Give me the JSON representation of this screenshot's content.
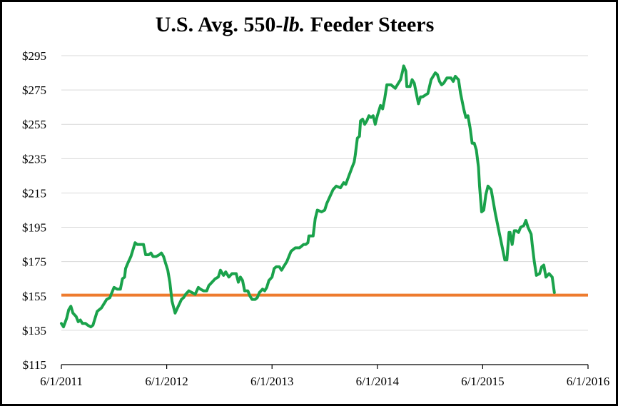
{
  "chart_data": {
    "type": "line",
    "title_parts": [
      "U.S. Avg. 550-",
      "lb.",
      " Feeder Steers"
    ],
    "xlabel": "",
    "ylabel": "",
    "ylim": [
      115,
      295
    ],
    "y_ticks": [
      "$295",
      "$275",
      "$255",
      "$235",
      "$215",
      "$195",
      "$175",
      "$155",
      "$135",
      "$115"
    ],
    "y_tick_values": [
      295,
      275,
      255,
      235,
      215,
      195,
      175,
      155,
      135,
      115
    ],
    "x_ticks": [
      "6/1/2011",
      "6/1/2012",
      "6/1/2013",
      "6/1/2014",
      "6/1/2015",
      "6/1/2016"
    ],
    "x_tick_values": [
      2011.0,
      2012.0,
      2013.0,
      2014.0,
      2015.0,
      2016.0
    ],
    "grid": "horizontal",
    "legend": "none",
    "colors": {
      "price": "#1aa24b",
      "reference": "#ee7b2e",
      "grid": "#d9d9d9",
      "axis": "#000000"
    },
    "series": [
      {
        "points": [
          [
            2011.0,
            139
          ],
          [
            2011.02,
            137
          ],
          [
            2011.05,
            142
          ],
          [
            2011.07,
            147
          ],
          [
            2011.09,
            149
          ],
          [
            2011.11,
            145
          ],
          [
            2011.14,
            143
          ],
          [
            2011.16,
            140
          ],
          [
            2011.18,
            141
          ],
          [
            2011.2,
            139
          ],
          [
            2011.23,
            139
          ],
          [
            2011.25,
            138
          ],
          [
            2011.28,
            137
          ],
          [
            2011.3,
            138
          ],
          [
            2011.32,
            142
          ],
          [
            2011.34,
            146
          ],
          [
            2011.38,
            148
          ],
          [
            2011.41,
            151
          ],
          [
            2011.43,
            153
          ],
          [
            2011.46,
            154
          ],
          [
            2011.48,
            157
          ],
          [
            2011.5,
            160
          ],
          [
            2011.53,
            159
          ],
          [
            2011.56,
            159
          ],
          [
            2011.58,
            165
          ],
          [
            2011.6,
            166
          ],
          [
            2011.61,
            171
          ],
          [
            2011.63,
            174
          ],
          [
            2011.66,
            178
          ],
          [
            2011.68,
            182
          ],
          [
            2011.7,
            186
          ],
          [
            2011.72,
            185
          ],
          [
            2011.74,
            185
          ],
          [
            2011.78,
            185
          ],
          [
            2011.8,
            179
          ],
          [
            2011.83,
            179
          ],
          [
            2011.85,
            180
          ],
          [
            2011.87,
            178
          ],
          [
            2011.9,
            178
          ],
          [
            2011.93,
            179
          ],
          [
            2011.95,
            180
          ],
          [
            2011.97,
            178
          ],
          [
            2011.99,
            174
          ],
          [
            2012.01,
            170
          ],
          [
            2012.03,
            163
          ],
          [
            2012.05,
            152
          ],
          [
            2012.08,
            145
          ],
          [
            2012.11,
            149
          ],
          [
            2012.14,
            153
          ],
          [
            2012.16,
            154
          ],
          [
            2012.18,
            156
          ],
          [
            2012.21,
            158
          ],
          [
            2012.24,
            157
          ],
          [
            2012.27,
            156
          ],
          [
            2012.3,
            160
          ],
          [
            2012.32,
            159
          ],
          [
            2012.35,
            158
          ],
          [
            2012.38,
            158
          ],
          [
            2012.4,
            161
          ],
          [
            2012.43,
            163
          ],
          [
            2012.46,
            165
          ],
          [
            2012.49,
            166
          ],
          [
            2012.51,
            170
          ],
          [
            2012.54,
            167
          ],
          [
            2012.56,
            169
          ],
          [
            2012.59,
            166
          ],
          [
            2012.62,
            168
          ],
          [
            2012.66,
            168
          ],
          [
            2012.68,
            163
          ],
          [
            2012.7,
            166
          ],
          [
            2012.72,
            164
          ],
          [
            2012.74,
            158
          ],
          [
            2012.77,
            158
          ],
          [
            2012.79,
            155
          ],
          [
            2012.81,
            153
          ],
          [
            2012.84,
            153
          ],
          [
            2012.86,
            154
          ],
          [
            2012.88,
            157
          ],
          [
            2012.91,
            159
          ],
          [
            2012.93,
            158
          ],
          [
            2012.95,
            160
          ],
          [
            2012.97,
            164
          ],
          [
            2013.0,
            166
          ],
          [
            2013.02,
            171
          ],
          [
            2013.04,
            172
          ],
          [
            2013.07,
            172
          ],
          [
            2013.09,
            170
          ],
          [
            2013.11,
            172
          ],
          [
            2013.14,
            175
          ],
          [
            2013.16,
            178
          ],
          [
            2013.18,
            181
          ],
          [
            2013.22,
            183
          ],
          [
            2013.26,
            183
          ],
          [
            2013.3,
            185
          ],
          [
            2013.32,
            185
          ],
          [
            2013.34,
            186
          ],
          [
            2013.35,
            190
          ],
          [
            2013.39,
            190
          ],
          [
            2013.41,
            200
          ],
          [
            2013.43,
            205
          ],
          [
            2013.47,
            204
          ],
          [
            2013.5,
            205
          ],
          [
            2013.52,
            209
          ],
          [
            2013.55,
            213
          ],
          [
            2013.58,
            217
          ],
          [
            2013.61,
            219
          ],
          [
            2013.65,
            218
          ],
          [
            2013.68,
            221
          ],
          [
            2013.7,
            220
          ],
          [
            2013.73,
            225
          ],
          [
            2013.76,
            230
          ],
          [
            2013.78,
            233
          ],
          [
            2013.79,
            237
          ],
          [
            2013.81,
            247
          ],
          [
            2013.83,
            248
          ],
          [
            2013.84,
            257
          ],
          [
            2013.86,
            258
          ],
          [
            2013.88,
            255
          ],
          [
            2013.9,
            257
          ],
          [
            2013.92,
            260
          ],
          [
            2013.94,
            259
          ],
          [
            2013.96,
            260
          ],
          [
            2013.98,
            255
          ],
          [
            2014.0,
            260
          ],
          [
            2014.03,
            266
          ],
          [
            2014.05,
            264
          ],
          [
            2014.07,
            270
          ],
          [
            2014.09,
            278
          ],
          [
            2014.13,
            278
          ],
          [
            2014.17,
            276
          ],
          [
            2014.2,
            279
          ],
          [
            2014.22,
            281
          ],
          [
            2014.24,
            286
          ],
          [
            2014.25,
            289
          ],
          [
            2014.27,
            286
          ],
          [
            2014.28,
            277
          ],
          [
            2014.31,
            277
          ],
          [
            2014.33,
            281
          ],
          [
            2014.35,
            279
          ],
          [
            2014.37,
            273
          ],
          [
            2014.39,
            267
          ],
          [
            2014.41,
            271
          ],
          [
            2014.43,
            271
          ],
          [
            2014.48,
            273
          ],
          [
            2014.51,
            281
          ],
          [
            2014.55,
            285
          ],
          [
            2014.57,
            284
          ],
          [
            2014.59,
            280
          ],
          [
            2014.61,
            278
          ],
          [
            2014.63,
            279
          ],
          [
            2014.66,
            282
          ],
          [
            2014.7,
            282
          ],
          [
            2014.72,
            280
          ],
          [
            2014.74,
            283
          ],
          [
            2014.77,
            281
          ],
          [
            2014.79,
            273
          ],
          [
            2014.82,
            264
          ],
          [
            2014.84,
            259
          ],
          [
            2014.86,
            260
          ],
          [
            2014.88,
            253
          ],
          [
            2014.9,
            244
          ],
          [
            2014.92,
            244
          ],
          [
            2014.94,
            240
          ],
          [
            2014.96,
            230
          ],
          [
            2014.97,
            219
          ],
          [
            2014.99,
            204
          ],
          [
            2015.01,
            205
          ],
          [
            2015.03,
            214
          ],
          [
            2015.05,
            219
          ],
          [
            2015.08,
            217
          ],
          [
            2015.1,
            210
          ],
          [
            2015.12,
            203
          ],
          [
            2015.13,
            200
          ],
          [
            2015.15,
            194
          ],
          [
            2015.18,
            185
          ],
          [
            2015.21,
            176
          ],
          [
            2015.23,
            176
          ],
          [
            2015.25,
            192
          ],
          [
            2015.26,
            192
          ],
          [
            2015.28,
            185
          ],
          [
            2015.3,
            193
          ],
          [
            2015.32,
            193
          ],
          [
            2015.34,
            192
          ],
          [
            2015.36,
            195
          ],
          [
            2015.39,
            196
          ],
          [
            2015.41,
            199
          ],
          [
            2015.43,
            195
          ],
          [
            2015.46,
            191
          ],
          [
            2015.47,
            185
          ],
          [
            2015.49,
            175
          ],
          [
            2015.51,
            167
          ],
          [
            2015.54,
            168
          ],
          [
            2015.56,
            172
          ],
          [
            2015.58,
            173
          ],
          [
            2015.6,
            166
          ],
          [
            2015.63,
            168
          ],
          [
            2015.66,
            166
          ],
          [
            2015.68,
            157
          ]
        ]
      },
      {
        "points": [
          [
            2011.0,
            155.5
          ],
          [
            2016.0,
            155.5
          ]
        ]
      }
    ]
  }
}
